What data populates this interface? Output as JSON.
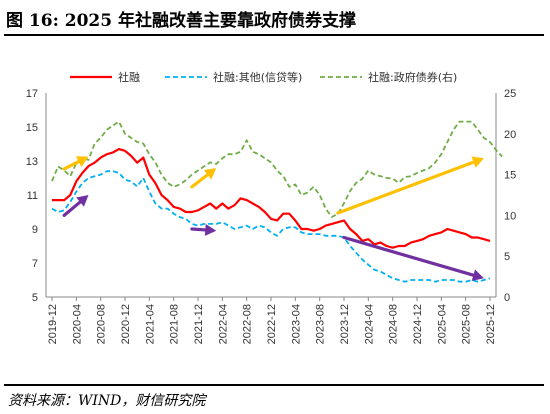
{
  "figure": {
    "title": "图 16:  2025 年社融改善主要靠政府债券支撑",
    "source": "资料来源：WIND，财信研究院"
  },
  "chart_data": {
    "type": "line",
    "xlabel": "",
    "ylabel": "",
    "y_left": {
      "min": 5,
      "max": 17,
      "ticks": [
        5,
        7,
        9,
        11,
        13,
        15,
        17
      ]
    },
    "y_right": {
      "min": 0,
      "max": 25,
      "ticks": [
        0,
        5,
        10,
        15,
        20,
        25
      ]
    },
    "x_tick_labels": [
      "2019-12",
      "2020-04",
      "2020-08",
      "2020-12",
      "2021-04",
      "2021-08",
      "2021-12",
      "2022-04",
      "2022-08",
      "2022-12",
      "2023-04",
      "2023-08",
      "2023-12",
      "2024-04",
      "2024-08",
      "2024-12",
      "2025-04",
      "2025-08",
      "2025-12"
    ],
    "grid": false,
    "legend": "top",
    "series": [
      {
        "name": "社融",
        "axis": "left",
        "color": "#ff0000",
        "style": "solid",
        "values": [
          10.7,
          10.7,
          10.7,
          11.0,
          11.8,
          12.3,
          12.7,
          12.9,
          13.2,
          13.4,
          13.5,
          13.7,
          13.6,
          13.3,
          12.9,
          13.2,
          12.2,
          11.7,
          11.0,
          10.7,
          10.3,
          10.2,
          10.0,
          10.0,
          10.1,
          10.3,
          10.5,
          10.2,
          10.5,
          10.2,
          10.4,
          10.8,
          10.7,
          10.5,
          10.3,
          10.0,
          9.6,
          9.5,
          9.9,
          9.9,
          9.5,
          9.0,
          9.0,
          8.9,
          9.0,
          9.2,
          9.3,
          9.4,
          9.5,
          9.0,
          8.7,
          8.3,
          8.4,
          8.1,
          8.2,
          8.0,
          7.9,
          8.0,
          8.0,
          8.2,
          8.3,
          8.4,
          8.6,
          8.7,
          8.8,
          9.0,
          8.9,
          8.8,
          8.7,
          8.5,
          8.5,
          8.4,
          8.3
        ]
      },
      {
        "name": "社融:其他(信贷等)",
        "axis": "left",
        "color": "#00b0f0",
        "style": "dashed",
        "values": [
          10.2,
          10.0,
          10.1,
          10.6,
          11.2,
          11.7,
          12.0,
          12.1,
          12.2,
          12.4,
          12.4,
          12.3,
          11.9,
          11.8,
          11.5,
          12.0,
          11.2,
          10.5,
          10.2,
          10.2,
          9.9,
          9.7,
          9.6,
          9.3,
          9.2,
          9.3,
          9.3,
          9.3,
          9.4,
          9.2,
          9.0,
          9.1,
          9.2,
          9.0,
          9.2,
          9.1,
          8.8,
          8.6,
          9.0,
          9.1,
          9.1,
          8.8,
          8.7,
          8.7,
          8.7,
          8.6,
          8.6,
          8.6,
          8.5,
          8.0,
          7.6,
          7.2,
          6.9,
          6.6,
          6.5,
          6.3,
          6.1,
          6.0,
          5.9,
          6.0,
          6.0,
          6.0,
          6.0,
          5.9,
          6.0,
          6.0,
          6.0,
          5.9,
          5.9,
          6.0,
          5.9,
          6.0,
          6.1
        ]
      },
      {
        "name": "社融:政府债券(右)",
        "axis": "right",
        "color": "#70ad47",
        "style": "dashed",
        "values": [
          14.2,
          16.0,
          15.5,
          14.8,
          16.4,
          17.0,
          16.8,
          18.8,
          19.5,
          20.5,
          21.0,
          21.5,
          20.0,
          19.5,
          19.0,
          18.8,
          17.5,
          16.5,
          15.0,
          14.0,
          13.5,
          13.8,
          14.3,
          15.0,
          15.5,
          16.0,
          16.5,
          16.3,
          17.0,
          17.5,
          17.5,
          17.8,
          19.2,
          17.8,
          17.5,
          17.0,
          16.5,
          15.5,
          14.8,
          13.5,
          13.8,
          12.5,
          12.8,
          13.5,
          12.5,
          10.8,
          9.8,
          10.2,
          11.5,
          13.0,
          14.0,
          14.5,
          15.5,
          15.0,
          14.8,
          14.6,
          14.5,
          14.0,
          14.7,
          14.8,
          15.2,
          15.5,
          15.8,
          16.5,
          17.5,
          19.0,
          20.5,
          21.5,
          21.5,
          21.5,
          20.5,
          19.5,
          19.0,
          18.0,
          17.2
        ]
      }
    ],
    "annotations": [
      {
        "type": "arrow",
        "color": "#ffc000",
        "from": [
          "2020-02",
          15.7
        ],
        "to": [
          "2020-06",
          17.2
        ],
        "axis": "right"
      },
      {
        "type": "arrow",
        "color": "#7030a0",
        "from": [
          "2020-02",
          9.8
        ],
        "to": [
          "2020-06",
          11.0
        ],
        "axis": "left"
      },
      {
        "type": "arrow",
        "color": "#ffc000",
        "from": [
          "2021-11",
          13.5
        ],
        "to": [
          "2022-03",
          15.8
        ],
        "axis": "right"
      },
      {
        "type": "arrow",
        "color": "#7030a0",
        "from": [
          "2021-11",
          9.0
        ],
        "to": [
          "2022-03",
          8.9
        ],
        "axis": "left"
      },
      {
        "type": "arrow",
        "color": "#ffc000",
        "from": [
          "2023-11",
          10.3
        ],
        "to": [
          "2025-11",
          17.0
        ],
        "axis": "right"
      },
      {
        "type": "arrow",
        "color": "#7030a0",
        "from": [
          "2023-12",
          8.5
        ],
        "to": [
          "2025-11",
          6.1
        ],
        "axis": "left"
      }
    ]
  }
}
